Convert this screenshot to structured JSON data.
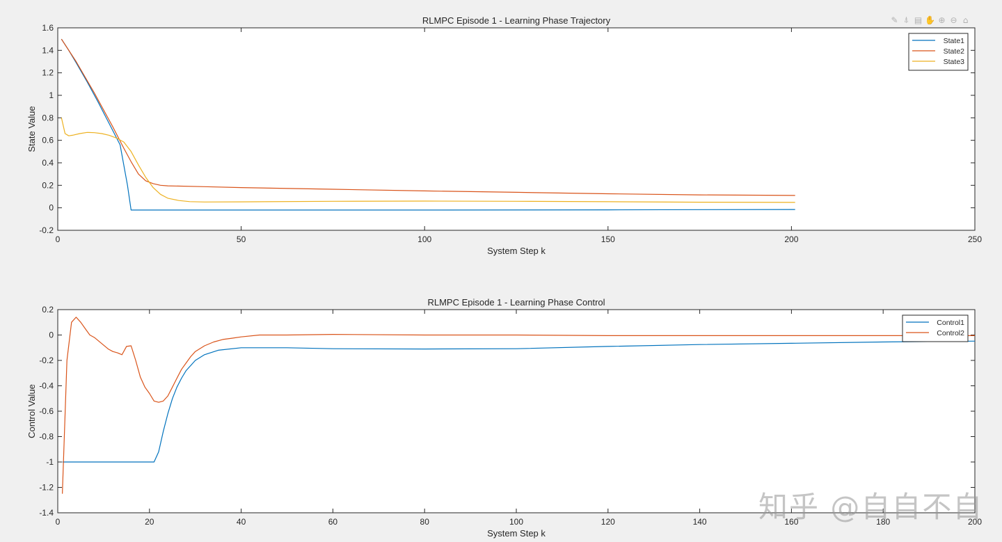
{
  "toolbar": {
    "icons": [
      "brush-icon",
      "datatip-icon",
      "legend-toggle-icon",
      "pan-hand-icon",
      "zoom-in-icon",
      "zoom-out-icon",
      "home-icon"
    ],
    "glyphs": [
      "✎",
      "⍋",
      "▤",
      "✋",
      "⊕",
      "⊖",
      "⌂"
    ]
  },
  "watermark": "知乎 @自自不自",
  "chart_data": [
    {
      "type": "line",
      "title": "RLMPC Episode 1 - Learning Phase Trajectory",
      "xlabel": "System Step k",
      "ylabel": "State Value",
      "xlim": [
        0,
        250
      ],
      "ylim": [
        -0.2,
        1.6
      ],
      "xticks": [
        0,
        50,
        100,
        150,
        200,
        250
      ],
      "yticks": [
        -0.2,
        0,
        0.2,
        0.4,
        0.6,
        0.8,
        1,
        1.2,
        1.4,
        1.6
      ],
      "grid": false,
      "legend": "top-right",
      "series": [
        {
          "name": "State1",
          "color": "#0072BD",
          "points": [
            [
              1,
              1.5
            ],
            [
              3,
              1.4
            ],
            [
              5,
              1.29
            ],
            [
              8,
              1.12
            ],
            [
              11,
              0.94
            ],
            [
              14,
              0.75
            ],
            [
              17,
              0.56
            ],
            [
              19,
              0.2
            ],
            [
              20,
              -0.02
            ],
            [
              22,
              -0.02
            ],
            [
              50,
              -0.02
            ],
            [
              100,
              -0.02
            ],
            [
              150,
              -0.018
            ],
            [
              201,
              -0.015
            ]
          ]
        },
        {
          "name": "State2",
          "color": "#D95319",
          "points": [
            [
              1,
              1.5
            ],
            [
              5,
              1.3
            ],
            [
              10,
              1.02
            ],
            [
              15,
              0.72
            ],
            [
              18,
              0.53
            ],
            [
              20,
              0.41
            ],
            [
              22,
              0.3
            ],
            [
              24,
              0.24
            ],
            [
              26,
              0.215
            ],
            [
              28,
              0.2
            ],
            [
              30,
              0.195
            ],
            [
              40,
              0.188
            ],
            [
              50,
              0.18
            ],
            [
              75,
              0.165
            ],
            [
              100,
              0.15
            ],
            [
              125,
              0.138
            ],
            [
              150,
              0.125
            ],
            [
              175,
              0.115
            ],
            [
              201,
              0.11
            ]
          ]
        },
        {
          "name": "State3",
          "color": "#EDB120",
          "points": [
            [
              1,
              0.8
            ],
            [
              2,
              0.66
            ],
            [
              3,
              0.64
            ],
            [
              4,
              0.645
            ],
            [
              6,
              0.66
            ],
            [
              8,
              0.67
            ],
            [
              10,
              0.668
            ],
            [
              12,
              0.66
            ],
            [
              14,
              0.645
            ],
            [
              16,
              0.62
            ],
            [
              18,
              0.585
            ],
            [
              20,
              0.5
            ],
            [
              22,
              0.38
            ],
            [
              24,
              0.27
            ],
            [
              26,
              0.18
            ],
            [
              28,
              0.12
            ],
            [
              30,
              0.085
            ],
            [
              33,
              0.065
            ],
            [
              36,
              0.055
            ],
            [
              40,
              0.052
            ],
            [
              50,
              0.053
            ],
            [
              75,
              0.058
            ],
            [
              100,
              0.06
            ],
            [
              125,
              0.058
            ],
            [
              150,
              0.054
            ],
            [
              175,
              0.05
            ],
            [
              201,
              0.048
            ]
          ]
        }
      ]
    },
    {
      "type": "line",
      "title": "RLMPC Episode 1 - Learning Phase Control",
      "xlabel": "System Step k",
      "ylabel": "Control Value",
      "xlim": [
        0,
        200
      ],
      "ylim": [
        -1.4,
        0.2
      ],
      "xticks": [
        0,
        20,
        40,
        60,
        80,
        100,
        120,
        140,
        160,
        180,
        200
      ],
      "yticks": [
        -1.4,
        -1.2,
        -1,
        -0.8,
        -0.6,
        -0.4,
        -0.2,
        0,
        0.2
      ],
      "grid": false,
      "legend": "top-right",
      "series": [
        {
          "name": "Control1",
          "color": "#0072BD",
          "points": [
            [
              1,
              -1
            ],
            [
              10,
              -1
            ],
            [
              21,
              -1
            ],
            [
              22,
              -0.92
            ],
            [
              23,
              -0.76
            ],
            [
              24,
              -0.62
            ],
            [
              25,
              -0.5
            ],
            [
              26,
              -0.41
            ],
            [
              27,
              -0.34
            ],
            [
              28,
              -0.28
            ],
            [
              30,
              -0.2
            ],
            [
              32,
              -0.155
            ],
            [
              35,
              -0.12
            ],
            [
              40,
              -0.1
            ],
            [
              50,
              -0.1
            ],
            [
              60,
              -0.108
            ],
            [
              80,
              -0.11
            ],
            [
              100,
              -0.108
            ],
            [
              120,
              -0.09
            ],
            [
              140,
              -0.075
            ],
            [
              160,
              -0.065
            ],
            [
              180,
              -0.055
            ],
            [
              200,
              -0.048
            ]
          ]
        },
        {
          "name": "Control2",
          "color": "#D95319",
          "points": [
            [
              1,
              -1.25
            ],
            [
              2,
              -0.2
            ],
            [
              3,
              0.1
            ],
            [
              4,
              0.14
            ],
            [
              5,
              0.1
            ],
            [
              6,
              0.05
            ],
            [
              7,
              0
            ],
            [
              8,
              -0.02
            ],
            [
              9,
              -0.05
            ],
            [
              10,
              -0.08
            ],
            [
              11,
              -0.11
            ],
            [
              12,
              -0.13
            ],
            [
              13,
              -0.14
            ],
            [
              14,
              -0.155
            ],
            [
              15,
              -0.09
            ],
            [
              16,
              -0.085
            ],
            [
              17,
              -0.2
            ],
            [
              18,
              -0.33
            ],
            [
              19,
              -0.41
            ],
            [
              20,
              -0.46
            ],
            [
              21,
              -0.52
            ],
            [
              22,
              -0.53
            ],
            [
              23,
              -0.52
            ],
            [
              24,
              -0.48
            ],
            [
              25,
              -0.41
            ],
            [
              26,
              -0.34
            ],
            [
              27,
              -0.27
            ],
            [
              28,
              -0.22
            ],
            [
              29,
              -0.17
            ],
            [
              30,
              -0.13
            ],
            [
              32,
              -0.085
            ],
            [
              34,
              -0.055
            ],
            [
              36,
              -0.035
            ],
            [
              38,
              -0.025
            ],
            [
              40,
              -0.015
            ],
            [
              44,
              0
            ],
            [
              50,
              0
            ],
            [
              60,
              0.005
            ],
            [
              80,
              0
            ],
            [
              100,
              0
            ],
            [
              120,
              -0.005
            ],
            [
              140,
              -0.005
            ],
            [
              160,
              -0.005
            ],
            [
              180,
              -0.005
            ],
            [
              200,
              -0.005
            ]
          ]
        }
      ]
    }
  ]
}
